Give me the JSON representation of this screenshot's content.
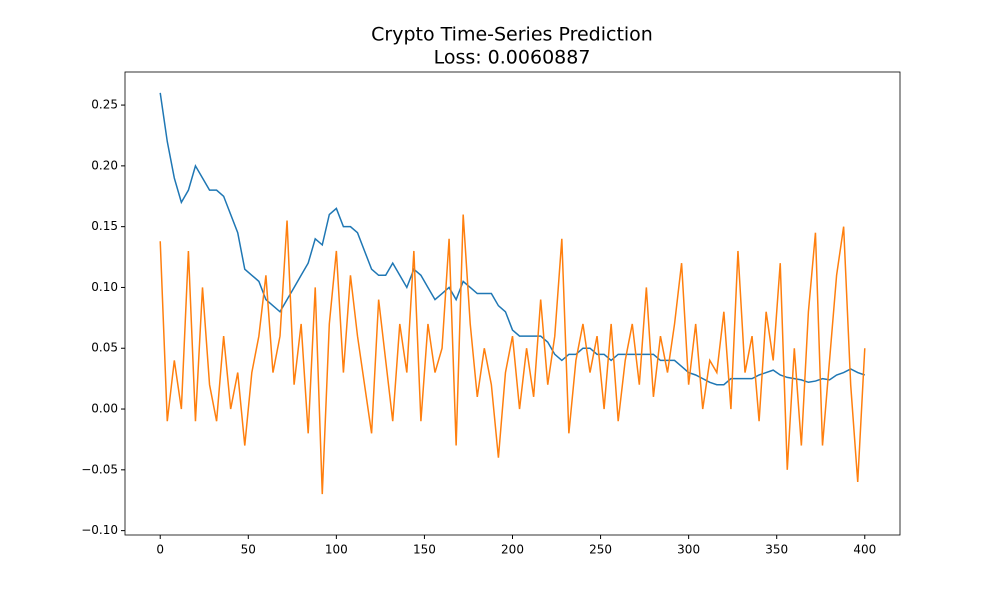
{
  "chart_data": {
    "type": "line",
    "title": "Crypto Time-Series Prediction",
    "subtitle": "Loss: 0.0060887",
    "x": [
      0,
      4,
      8,
      12,
      16,
      20,
      24,
      28,
      32,
      36,
      40,
      44,
      48,
      52,
      56,
      60,
      64,
      68,
      72,
      76,
      80,
      84,
      88,
      92,
      96,
      100,
      104,
      108,
      112,
      116,
      120,
      124,
      128,
      132,
      136,
      140,
      144,
      148,
      152,
      156,
      160,
      164,
      168,
      172,
      176,
      180,
      184,
      188,
      192,
      196,
      200,
      204,
      208,
      212,
      216,
      220,
      224,
      228,
      232,
      236,
      240,
      244,
      248,
      252,
      256,
      260,
      264,
      268,
      272,
      276,
      280,
      284,
      288,
      292,
      296,
      300,
      304,
      308,
      312,
      316,
      320,
      324,
      328,
      332,
      336,
      340,
      344,
      348,
      352,
      356,
      360,
      364,
      368,
      372,
      376,
      380,
      384,
      388,
      392,
      396,
      400
    ],
    "series": [
      {
        "color": "#1f77b4",
        "values": [
          0.26,
          0.22,
          0.19,
          0.17,
          0.18,
          0.2,
          0.19,
          0.18,
          0.18,
          0.175,
          0.16,
          0.145,
          0.115,
          0.11,
          0.105,
          0.09,
          0.085,
          0.08,
          0.09,
          0.1,
          0.11,
          0.12,
          0.14,
          0.135,
          0.16,
          0.165,
          0.15,
          0.15,
          0.145,
          0.13,
          0.115,
          0.11,
          0.11,
          0.12,
          0.11,
          0.1,
          0.115,
          0.11,
          0.1,
          0.09,
          0.095,
          0.1,
          0.09,
          0.105,
          0.1,
          0.095,
          0.095,
          0.095,
          0.085,
          0.08,
          0.065,
          0.06,
          0.06,
          0.06,
          0.06,
          0.055,
          0.045,
          0.04,
          0.045,
          0.045,
          0.05,
          0.05,
          0.045,
          0.045,
          0.04,
          0.045,
          0.045,
          0.045,
          0.045,
          0.045,
          0.045,
          0.04,
          0.04,
          0.04,
          0.035,
          0.03,
          0.028,
          0.025,
          0.022,
          0.02,
          0.02,
          0.025,
          0.025,
          0.025,
          0.025,
          0.028,
          0.03,
          0.032,
          0.028,
          0.026,
          0.025,
          0.024,
          0.022,
          0.023,
          0.025,
          0.024,
          0.028,
          0.03,
          0.033,
          0.03,
          0.028
        ]
      },
      {
        "color": "#ff7f0e",
        "values": [
          0.138,
          -0.01,
          0.04,
          0.0,
          0.13,
          -0.01,
          0.1,
          0.02,
          -0.01,
          0.06,
          0.0,
          0.03,
          -0.03,
          0.03,
          0.06,
          0.11,
          0.03,
          0.06,
          0.155,
          0.02,
          0.07,
          -0.02,
          0.1,
          -0.07,
          0.07,
          0.13,
          0.03,
          0.11,
          0.06,
          0.02,
          -0.02,
          0.09,
          0.04,
          -0.01,
          0.07,
          0.03,
          0.13,
          -0.01,
          0.07,
          0.03,
          0.05,
          0.14,
          -0.03,
          0.16,
          0.07,
          0.01,
          0.05,
          0.02,
          -0.04,
          0.03,
          0.06,
          0.0,
          0.05,
          0.01,
          0.09,
          0.02,
          0.06,
          0.14,
          -0.02,
          0.04,
          0.07,
          0.03,
          0.06,
          0.0,
          0.07,
          -0.01,
          0.04,
          0.07,
          0.02,
          0.1,
          0.01,
          0.06,
          0.03,
          0.07,
          0.12,
          0.02,
          0.07,
          0.0,
          0.04,
          0.03,
          0.08,
          0.0,
          0.13,
          0.03,
          0.06,
          -0.01,
          0.08,
          0.04,
          0.12,
          -0.05,
          0.05,
          -0.03,
          0.08,
          0.145,
          -0.03,
          0.04,
          0.11,
          0.15,
          0.02,
          -0.06,
          0.05
        ]
      }
    ],
    "xlim": [
      -20,
      420
    ],
    "xticks": [
      0,
      50,
      100,
      150,
      200,
      250,
      300,
      350,
      400
    ],
    "ylim": [
      -0.1036,
      0.2772
    ],
    "yticks": [
      {
        "value": -0.1,
        "label": "−0.10"
      },
      {
        "value": -0.05,
        "label": "−0.05"
      },
      {
        "value": 0,
        "label": "0.00"
      },
      0.05,
      {
        "value": 0.1,
        "label": "0.10"
      },
      0.15,
      {
        "value": 0.2,
        "label": "0.20"
      },
      0.25
    ]
  }
}
